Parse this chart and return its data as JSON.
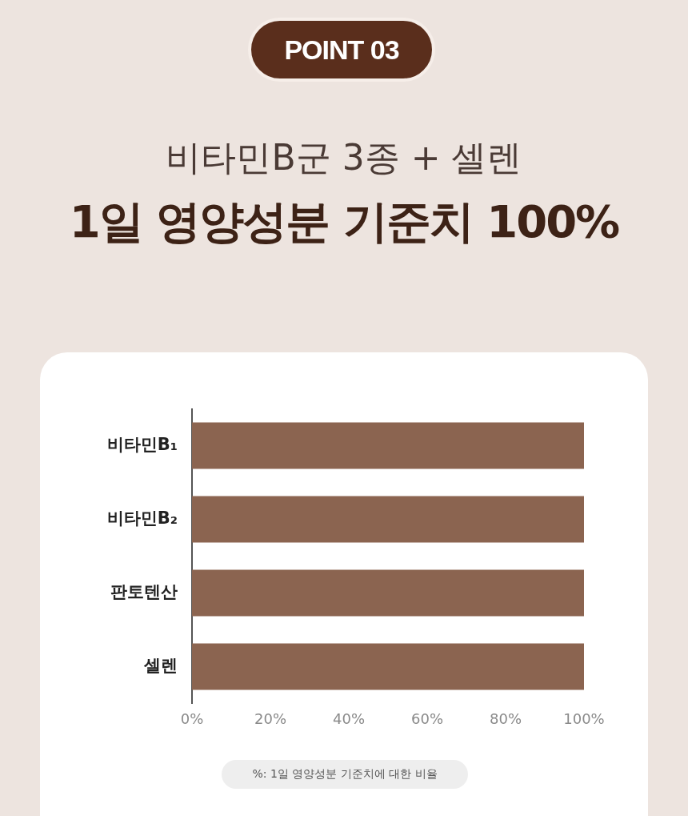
{
  "chart_data": {
    "type": "bar",
    "orientation": "horizontal",
    "title": "1일 영양성분 기준치 100%",
    "subtitle": "비타민B군 3종 + 셀렌",
    "annotations": [
      "POINT 03",
      "%: 1일 영양성분 기준치에 대한 비율"
    ],
    "categories": [
      "비타민B₁",
      "비타민B₂",
      "판토텐산",
      "셀렌"
    ],
    "values": [
      100,
      100,
      100,
      100
    ],
    "color": "#8b6450",
    "xlim": [
      0,
      100
    ],
    "xticks": [
      {
        "value": 0,
        "label": "0%"
      },
      {
        "value": 20,
        "label": "20%"
      },
      {
        "value": 40,
        "label": "40%"
      },
      {
        "value": 60,
        "label": "60%"
      },
      {
        "value": 80,
        "label": "80%"
      },
      {
        "value": 100,
        "label": "100%"
      }
    ],
    "grid": false,
    "legend": false
  }
}
